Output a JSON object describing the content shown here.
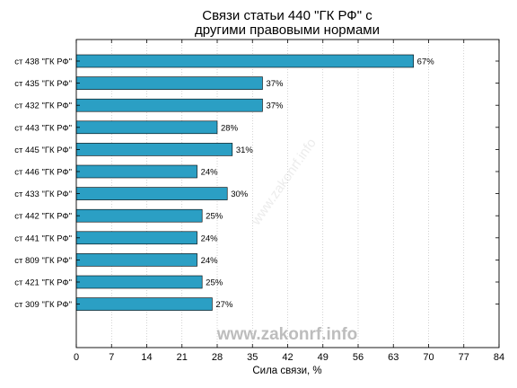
{
  "chart_data": {
    "type": "bar",
    "orientation": "horizontal",
    "title": [
      "Связи статьи 440 \"ГК РФ\" с",
      "другими правовыми нормами"
    ],
    "xlabel": "Сила связи, %",
    "ylabel": "",
    "xlim": [
      0,
      84
    ],
    "xticks": [
      "0",
      "7",
      "14",
      "21",
      "28",
      "35",
      "42",
      "49",
      "56",
      "63",
      "70",
      "77",
      "84"
    ],
    "categories": [
      "ст 438 \"ГК РФ\"",
      "ст 435 \"ГК РФ\"",
      "ст 432 \"ГК РФ\"",
      "ст 443 \"ГК РФ\"",
      "ст 445 \"ГК РФ\"",
      "ст 446 \"ГК РФ\"",
      "ст 433 \"ГК РФ\"",
      "ст 442 \"ГК РФ\"",
      "ст 441 \"ГК РФ\"",
      "ст 809 \"ГК РФ\"",
      "ст 421 \"ГК РФ\"",
      "ст 309 \"ГК РФ\""
    ],
    "values": [
      67,
      37,
      37,
      28,
      31,
      24,
      30,
      25,
      24,
      24,
      25,
      27
    ],
    "value_labels": [
      "67%",
      "37%",
      "37%",
      "28%",
      "31%",
      "24%",
      "30%",
      "25%",
      "24%",
      "24%",
      "25%",
      "27%"
    ],
    "bar_color": "#2b9fc4",
    "grid": true,
    "watermark": "www.zakonrf.info"
  }
}
